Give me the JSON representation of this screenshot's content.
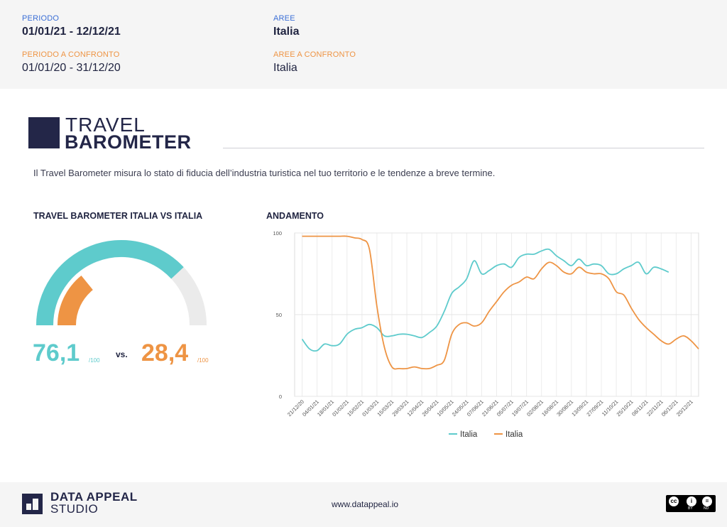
{
  "header": {
    "periodo_label": "PERIODO",
    "periodo_value": "01/01/21 - 12/12/21",
    "aree_label": "AREE",
    "aree_value": "Italia",
    "periodo_confronto_label": "PERIODO A CONFRONTO",
    "periodo_confronto_value": "01/01/20 - 31/12/20",
    "aree_confronto_label": "AREE A CONFRONTO",
    "aree_confronto_value": "Italia"
  },
  "brand": {
    "line1": "TRAVEL",
    "line2": "BAROMETER"
  },
  "intro": "Il Travel Barometer misura lo stato di fiducia dell’industria turistica nel tuo territorio e le tendenze a breve termine.",
  "gauge": {
    "title": "TRAVEL BAROMETER ITALIA VS ITALIA",
    "primary_value": 76.1,
    "primary_text": "76,1",
    "compare_value": 28.4,
    "compare_text": "28,4",
    "unit": "/100",
    "vs": "vs.",
    "colors": {
      "primary": "#5ecbcc",
      "compare": "#ee9444",
      "track": "#ebebeb"
    }
  },
  "chart_section_title": "ANDAMENTO",
  "chart_data": {
    "type": "line",
    "title": "ANDAMENTO",
    "ylim": [
      0,
      100
    ],
    "yticks": [
      0,
      50,
      100
    ],
    "x_tick_labels": [
      "21/12/20",
      "04/01/21",
      "18/01/21",
      "01/02/21",
      "15/02/21",
      "01/03/21",
      "15/03/21",
      "29/03/21",
      "12/04/21",
      "26/04/21",
      "10/05/21",
      "24/05/21",
      "07/06/21",
      "21/06/21",
      "05/07/21",
      "19/07/21",
      "02/08/21",
      "16/08/21",
      "30/08/21",
      "13/09/21",
      "27/09/21",
      "11/10/21",
      "25/10/21",
      "08/11/21",
      "22/11/21",
      "06/12/21",
      "20/12/21"
    ],
    "grid": true,
    "legend_position": "bottom",
    "series": [
      {
        "name": "Italia",
        "color": "#5ecbcc",
        "points": [
          [
            "21/12/20",
            35
          ],
          [
            "28/12/20",
            29
          ],
          [
            "04/01/21",
            28
          ],
          [
            "11/01/21",
            32
          ],
          [
            "18/01/21",
            31
          ],
          [
            "25/01/21",
            32
          ],
          [
            "01/02/21",
            38
          ],
          [
            "08/02/21",
            41
          ],
          [
            "15/02/21",
            42
          ],
          [
            "22/02/21",
            44
          ],
          [
            "01/03/21",
            42
          ],
          [
            "08/03/21",
            37
          ],
          [
            "15/03/21",
            37
          ],
          [
            "22/03/21",
            38
          ],
          [
            "29/03/21",
            38
          ],
          [
            "05/04/21",
            37
          ],
          [
            "12/04/21",
            36
          ],
          [
            "19/04/21",
            39
          ],
          [
            "26/04/21",
            43
          ],
          [
            "03/05/21",
            52
          ],
          [
            "10/05/21",
            63
          ],
          [
            "17/05/21",
            67
          ],
          [
            "24/05/21",
            72
          ],
          [
            "31/05/21",
            83
          ],
          [
            "07/06/21",
            75
          ],
          [
            "14/06/21",
            77
          ],
          [
            "21/06/21",
            80
          ],
          [
            "28/06/21",
            81
          ],
          [
            "05/07/21",
            79
          ],
          [
            "12/07/21",
            85
          ],
          [
            "19/07/21",
            87
          ],
          [
            "26/07/21",
            87
          ],
          [
            "02/08/21",
            89
          ],
          [
            "09/08/21",
            90
          ],
          [
            "16/08/21",
            86
          ],
          [
            "23/08/21",
            83
          ],
          [
            "30/08/21",
            80
          ],
          [
            "06/09/21",
            84
          ],
          [
            "13/09/21",
            80
          ],
          [
            "20/09/21",
            81
          ],
          [
            "27/09/21",
            80
          ],
          [
            "04/10/21",
            75
          ],
          [
            "11/10/21",
            75
          ],
          [
            "18/10/21",
            78
          ],
          [
            "25/10/21",
            80
          ],
          [
            "01/11/21",
            82
          ],
          [
            "08/11/21",
            75
          ],
          [
            "15/11/21",
            79
          ],
          [
            "22/11/21",
            78
          ],
          [
            "29/11/21",
            76
          ]
        ]
      },
      {
        "name": "Italia",
        "color": "#ee9444",
        "points": [
          [
            "21/12/20",
            98
          ],
          [
            "28/12/20",
            98
          ],
          [
            "04/01/21",
            98
          ],
          [
            "11/01/21",
            98
          ],
          [
            "18/01/21",
            98
          ],
          [
            "25/01/21",
            98
          ],
          [
            "01/02/21",
            98
          ],
          [
            "08/02/21",
            97
          ],
          [
            "15/02/21",
            96
          ],
          [
            "22/02/21",
            90
          ],
          [
            "01/03/21",
            55
          ],
          [
            "08/03/21",
            30
          ],
          [
            "15/03/21",
            18
          ],
          [
            "22/03/21",
            17
          ],
          [
            "29/03/21",
            17
          ],
          [
            "05/04/21",
            18
          ],
          [
            "12/04/21",
            17
          ],
          [
            "19/04/21",
            17
          ],
          [
            "26/04/21",
            19
          ],
          [
            "03/05/21",
            22
          ],
          [
            "10/05/21",
            38
          ],
          [
            "17/05/21",
            44
          ],
          [
            "24/05/21",
            45
          ],
          [
            "31/05/21",
            43
          ],
          [
            "07/06/21",
            45
          ],
          [
            "14/06/21",
            52
          ],
          [
            "21/06/21",
            58
          ],
          [
            "28/06/21",
            64
          ],
          [
            "05/07/21",
            68
          ],
          [
            "12/07/21",
            70
          ],
          [
            "19/07/21",
            73
          ],
          [
            "26/07/21",
            72
          ],
          [
            "02/08/21",
            78
          ],
          [
            "09/08/21",
            82
          ],
          [
            "16/08/21",
            80
          ],
          [
            "23/08/21",
            76
          ],
          [
            "30/08/21",
            75
          ],
          [
            "06/09/21",
            79
          ],
          [
            "13/09/21",
            76
          ],
          [
            "20/09/21",
            75
          ],
          [
            "27/09/21",
            75
          ],
          [
            "04/10/21",
            72
          ],
          [
            "11/10/21",
            64
          ],
          [
            "18/10/21",
            62
          ],
          [
            "25/10/21",
            54
          ],
          [
            "01/11/21",
            47
          ],
          [
            "08/11/21",
            42
          ],
          [
            "15/11/21",
            38
          ],
          [
            "22/11/21",
            34
          ],
          [
            "29/11/21",
            32
          ],
          [
            "06/12/21",
            35
          ],
          [
            "13/12/21",
            37
          ],
          [
            "20/12/21",
            34
          ],
          [
            "27/12/21",
            29
          ]
        ]
      }
    ]
  },
  "footer": {
    "company_line1": "DATA APPEAL",
    "company_line2": "STUDIO",
    "website": "www.datappeal.io",
    "license_by": "BY",
    "license_nd": "ND"
  }
}
